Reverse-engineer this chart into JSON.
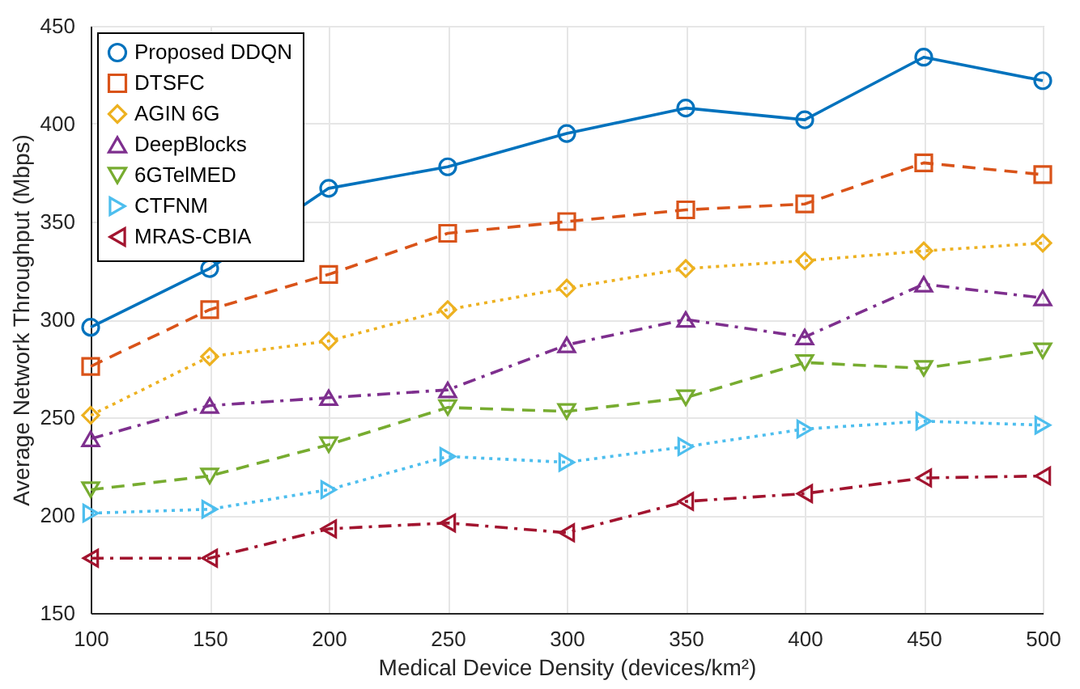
{
  "chart_data": {
    "type": "line",
    "xlabel": "Medical Device Density (devices/km²)",
    "ylabel": "Average Network Throughput (Mbps)",
    "x": [
      100,
      150,
      200,
      250,
      300,
      350,
      400,
      450,
      500
    ],
    "xlim": [
      100,
      500
    ],
    "xticks": [
      100,
      150,
      200,
      250,
      300,
      350,
      400,
      450,
      500
    ],
    "ylim": [
      150,
      450
    ],
    "yticks": [
      150,
      200,
      250,
      300,
      350,
      400,
      450
    ],
    "grid": true,
    "legend": "top left",
    "series": [
      {
        "name": "Proposed DDQN",
        "color": "#0072bd",
        "marker": "circle",
        "line_style": "solid",
        "values": [
          296,
          326,
          367,
          378,
          395,
          408,
          402,
          434,
          422
        ]
      },
      {
        "name": "DTSFC",
        "color": "#d95319",
        "marker": "square",
        "line_style": "dashed",
        "values": [
          276,
          305,
          323,
          344,
          350,
          356,
          359,
          380,
          374
        ]
      },
      {
        "name": "AGIN 6G",
        "color": "#edb120",
        "marker": "diamond",
        "line_style": "dotted",
        "values": [
          251,
          281,
          289,
          305,
          316,
          326,
          330,
          335,
          339
        ]
      },
      {
        "name": "DeepBlocks",
        "color": "#7e2f8e",
        "marker": "triangle",
        "line_style": "dashdot",
        "values": [
          239,
          256,
          260,
          264,
          287,
          300,
          291,
          318,
          311
        ]
      },
      {
        "name": "6GTelMED",
        "color": "#77ac30",
        "marker": "triangle-down",
        "line_style": "dashed",
        "values": [
          213,
          220,
          236,
          255,
          253,
          260,
          278,
          275,
          284
        ]
      },
      {
        "name": "CTFNM",
        "color": "#4dbeee",
        "marker": "triangle-right",
        "line_style": "dotted",
        "values": [
          201,
          203,
          213,
          230,
          227,
          235,
          244,
          248,
          246
        ]
      },
      {
        "name": "MRAS-CBIA",
        "color": "#a2142f",
        "marker": "triangle-left",
        "line_style": "dashdot",
        "values": [
          178,
          178,
          193,
          196,
          191,
          207,
          211,
          219,
          220
        ]
      }
    ]
  }
}
